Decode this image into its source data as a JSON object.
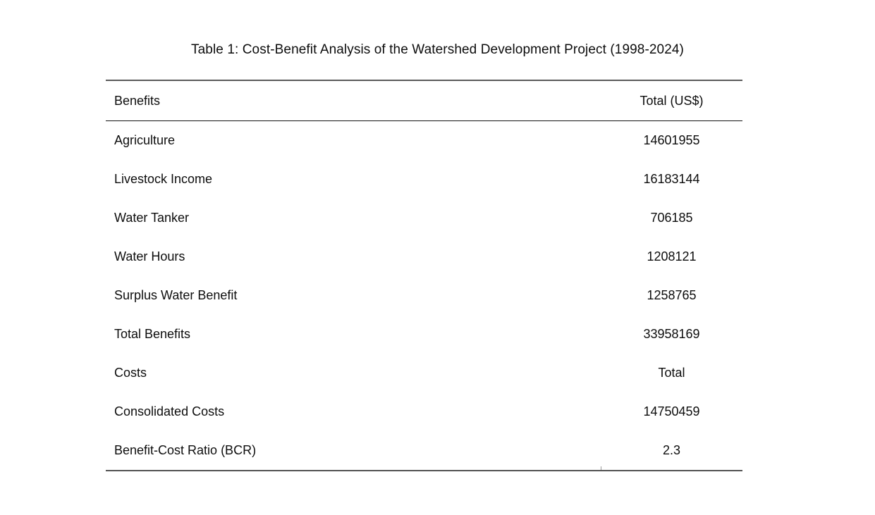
{
  "page": {
    "background": "#ffffff",
    "text_color": "#0d0d0d",
    "rule_heavy_color": "#5a5a5a",
    "rule_light_color": "#141414"
  },
  "title": "Table 1: Cost-Benefit Analysis of the Watershed Development Project (1998-2024)",
  "table": {
    "columns": [
      "Benefits",
      "Total (US$)"
    ],
    "rows": [
      {
        "label": "Agriculture",
        "value": "14601955"
      },
      {
        "label": "Livestock Income",
        "value": "16183144"
      },
      {
        "label": "Water Tanker",
        "value": "706185"
      },
      {
        "label": "Water Hours",
        "value": "1208121"
      },
      {
        "label": "Surplus Water Benefit",
        "value": "1258765"
      },
      {
        "label": "Total Benefits",
        "value": "33958169"
      },
      {
        "label": "Costs",
        "value": "Total"
      },
      {
        "label": "Consolidated Costs",
        "value": "14750459"
      },
      {
        "label": "Benefit-Cost Ratio (BCR)",
        "value": "2.3"
      }
    ]
  },
  "chart_data": {
    "type": "table",
    "title": "Table 1: Cost-Benefit Analysis of the Watershed Development Project (1998-2024)",
    "columns": [
      "Benefits",
      "Total (US$)"
    ],
    "rows": [
      [
        "Agriculture",
        14601955
      ],
      [
        "Livestock Income",
        16183144
      ],
      [
        "Water Tanker",
        706185
      ],
      [
        "Water Hours",
        1208121
      ],
      [
        "Surplus Water Benefit",
        1258765
      ],
      [
        "Total Benefits",
        33958169
      ],
      [
        "Costs",
        "Total"
      ],
      [
        "Consolidated Costs",
        14750459
      ],
      [
        "Benefit-Cost Ratio (BCR)",
        2.3
      ]
    ]
  }
}
